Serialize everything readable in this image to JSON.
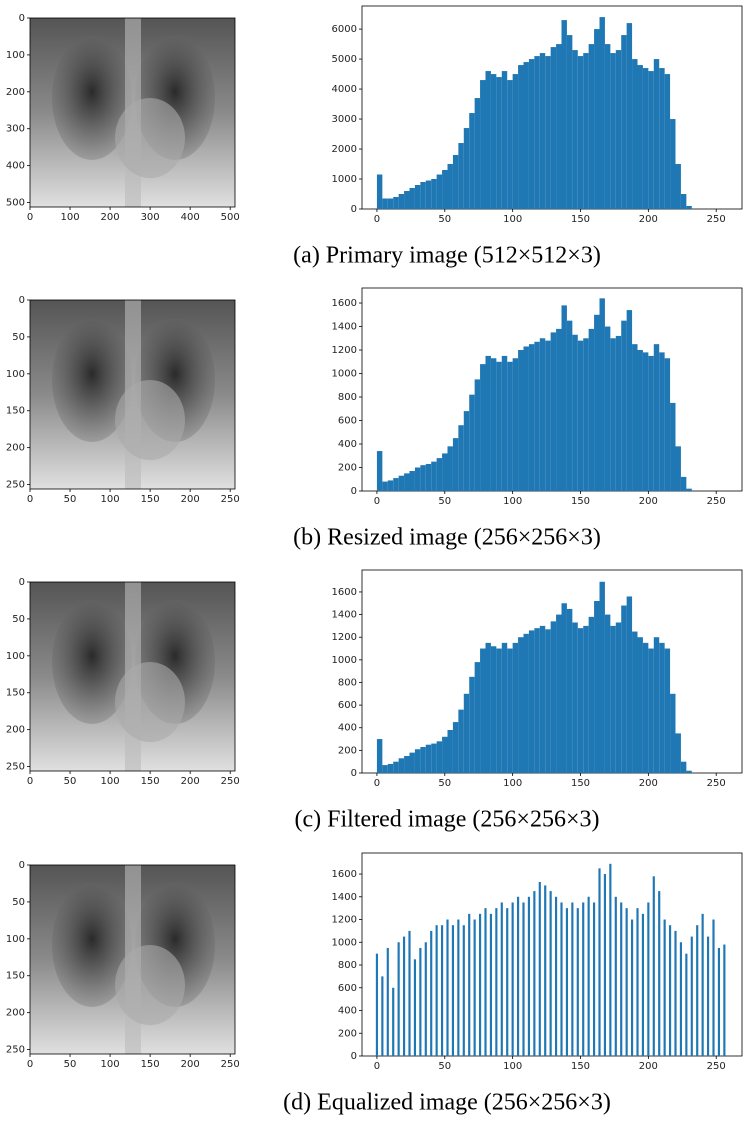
{
  "chart_data": [
    {
      "type": "bar",
      "caption": "(a) Primary image (512×512×3)",
      "color": "#1f77b4",
      "image": {
        "xlim": [
          0,
          512
        ],
        "ylim": [
          512,
          0
        ],
        "xticks": [
          0,
          100,
          200,
          300,
          400,
          500
        ],
        "yticks": [
          0,
          100,
          200,
          300,
          400,
          500
        ]
      },
      "x": [
        0,
        4,
        8,
        12,
        16,
        20,
        24,
        28,
        32,
        36,
        40,
        44,
        48,
        52,
        56,
        60,
        64,
        68,
        72,
        76,
        80,
        84,
        88,
        92,
        96,
        100,
        104,
        108,
        112,
        116,
        120,
        124,
        128,
        132,
        136,
        140,
        144,
        148,
        152,
        156,
        160,
        164,
        168,
        172,
        176,
        180,
        184,
        188,
        192,
        196,
        200,
        204,
        208,
        212,
        216,
        220,
        224,
        228
      ],
      "values": [
        1150,
        350,
        350,
        400,
        500,
        600,
        700,
        800,
        900,
        950,
        1000,
        1150,
        1300,
        1500,
        1800,
        2200,
        2700,
        3200,
        3700,
        4300,
        4600,
        4500,
        4400,
        4600,
        4300,
        4500,
        4800,
        4900,
        5000,
        5100,
        5200,
        5100,
        5400,
        5500,
        6300,
        5800,
        5300,
        5100,
        5200,
        5500,
        6000,
        6400,
        5500,
        5200,
        5300,
        5800,
        6200,
        5000,
        4800,
        4700,
        4600,
        5000,
        4700,
        4500,
        3000,
        1500,
        500,
        100
      ],
      "xlim": [
        -11,
        269
      ],
      "ylim": [
        0,
        6770
      ],
      "xticks": [
        0,
        50,
        100,
        150,
        200,
        250
      ],
      "yticks": [
        0,
        1000,
        2000,
        3000,
        4000,
        5000,
        6000
      ]
    },
    {
      "type": "bar",
      "caption": "(b) Resized image (256×256×3)",
      "color": "#1f77b4",
      "image": {
        "xlim": [
          0,
          256
        ],
        "ylim": [
          256,
          0
        ],
        "xticks": [
          0,
          50,
          100,
          150,
          200,
          250
        ],
        "yticks": [
          0,
          50,
          100,
          150,
          200,
          250
        ]
      },
      "x": [
        0,
        4,
        8,
        12,
        16,
        20,
        24,
        28,
        32,
        36,
        40,
        44,
        48,
        52,
        56,
        60,
        64,
        68,
        72,
        76,
        80,
        84,
        88,
        92,
        96,
        100,
        104,
        108,
        112,
        116,
        120,
        124,
        128,
        132,
        136,
        140,
        144,
        148,
        152,
        156,
        160,
        164,
        168,
        172,
        176,
        180,
        184,
        188,
        192,
        196,
        200,
        204,
        208,
        212,
        216,
        220,
        224,
        228
      ],
      "values": [
        340,
        80,
        90,
        110,
        130,
        150,
        170,
        200,
        220,
        230,
        250,
        280,
        320,
        380,
        450,
        560,
        680,
        820,
        950,
        1080,
        1150,
        1130,
        1100,
        1150,
        1100,
        1130,
        1200,
        1230,
        1250,
        1270,
        1300,
        1280,
        1350,
        1380,
        1580,
        1450,
        1330,
        1280,
        1300,
        1380,
        1500,
        1640,
        1400,
        1300,
        1320,
        1450,
        1540,
        1250,
        1200,
        1180,
        1150,
        1250,
        1180,
        1130,
        750,
        380,
        120,
        20
      ],
      "xlim": [
        -11,
        269
      ],
      "ylim": [
        0,
        1728
      ],
      "xticks": [
        0,
        50,
        100,
        150,
        200,
        250
      ],
      "yticks": [
        0,
        200,
        400,
        600,
        800,
        1000,
        1200,
        1400,
        1600
      ]
    },
    {
      "type": "bar",
      "caption": "(c) Filtered image (256×256×3)",
      "color": "#1f77b4",
      "image": {
        "xlim": [
          0,
          256
        ],
        "ylim": [
          256,
          0
        ],
        "xticks": [
          0,
          50,
          100,
          150,
          200,
          250
        ],
        "yticks": [
          0,
          50,
          100,
          150,
          200,
          250
        ]
      },
      "x": [
        0,
        4,
        8,
        12,
        16,
        20,
        24,
        28,
        32,
        36,
        40,
        44,
        48,
        52,
        56,
        60,
        64,
        68,
        72,
        76,
        80,
        84,
        88,
        92,
        96,
        100,
        104,
        108,
        112,
        116,
        120,
        124,
        128,
        132,
        136,
        140,
        144,
        148,
        152,
        156,
        160,
        164,
        168,
        172,
        176,
        180,
        184,
        188,
        192,
        196,
        200,
        204,
        208,
        212,
        216,
        220,
        224,
        228
      ],
      "values": [
        300,
        70,
        80,
        100,
        130,
        150,
        180,
        210,
        230,
        250,
        260,
        280,
        320,
        380,
        450,
        560,
        700,
        850,
        980,
        1100,
        1150,
        1120,
        1100,
        1150,
        1100,
        1150,
        1200,
        1230,
        1260,
        1280,
        1300,
        1270,
        1340,
        1400,
        1500,
        1450,
        1330,
        1280,
        1300,
        1380,
        1520,
        1690,
        1400,
        1300,
        1330,
        1480,
        1560,
        1250,
        1200,
        1150,
        1100,
        1200,
        1150,
        1100,
        700,
        350,
        100,
        20
      ],
      "xlim": [
        -11,
        269
      ],
      "ylim": [
        0,
        1794
      ],
      "xticks": [
        0,
        50,
        100,
        150,
        200,
        250
      ],
      "yticks": [
        0,
        200,
        400,
        600,
        800,
        1000,
        1200,
        1400,
        1600
      ]
    },
    {
      "type": "bar",
      "caption": "(d) Equalized image (256×256×3)",
      "color": "#1f77b4",
      "image": {
        "xlim": [
          0,
          256
        ],
        "ylim": [
          256,
          0
        ],
        "xticks": [
          0,
          50,
          100,
          150,
          200,
          250
        ],
        "yticks": [
          0,
          50,
          100,
          150,
          200,
          250
        ]
      },
      "x": [
        0,
        4,
        8,
        12,
        16,
        20,
        24,
        28,
        32,
        36,
        40,
        44,
        48,
        52,
        56,
        60,
        64,
        68,
        72,
        76,
        80,
        84,
        88,
        92,
        96,
        100,
        104,
        108,
        112,
        116,
        120,
        124,
        128,
        132,
        136,
        140,
        144,
        148,
        152,
        156,
        160,
        164,
        168,
        172,
        176,
        180,
        184,
        188,
        192,
        196,
        200,
        204,
        208,
        212,
        216,
        220,
        224,
        228,
        232,
        236,
        240,
        244,
        248,
        252,
        256
      ],
      "values": [
        900,
        700,
        950,
        600,
        1000,
        1050,
        1100,
        850,
        950,
        1000,
        1100,
        1150,
        1150,
        1200,
        1150,
        1200,
        1150,
        1250,
        1200,
        1250,
        1300,
        1250,
        1300,
        1350,
        1300,
        1350,
        1400,
        1350,
        1400,
        1450,
        1530,
        1500,
        1450,
        1400,
        1350,
        1300,
        1350,
        1300,
        1350,
        1400,
        1350,
        1650,
        1600,
        1690,
        1400,
        1350,
        1300,
        1200,
        1300,
        1250,
        1350,
        1580,
        1450,
        1200,
        1150,
        1100,
        1000,
        900,
        1050,
        1150,
        1250,
        1050,
        1200,
        950,
        980
      ],
      "xlim": [
        -11,
        269
      ],
      "ylim": [
        0,
        1785
      ],
      "xticks": [
        0,
        50,
        100,
        150,
        200,
        250
      ],
      "yticks": [
        0,
        200,
        400,
        600,
        800,
        1000,
        1200,
        1400,
        1600
      ]
    }
  ]
}
